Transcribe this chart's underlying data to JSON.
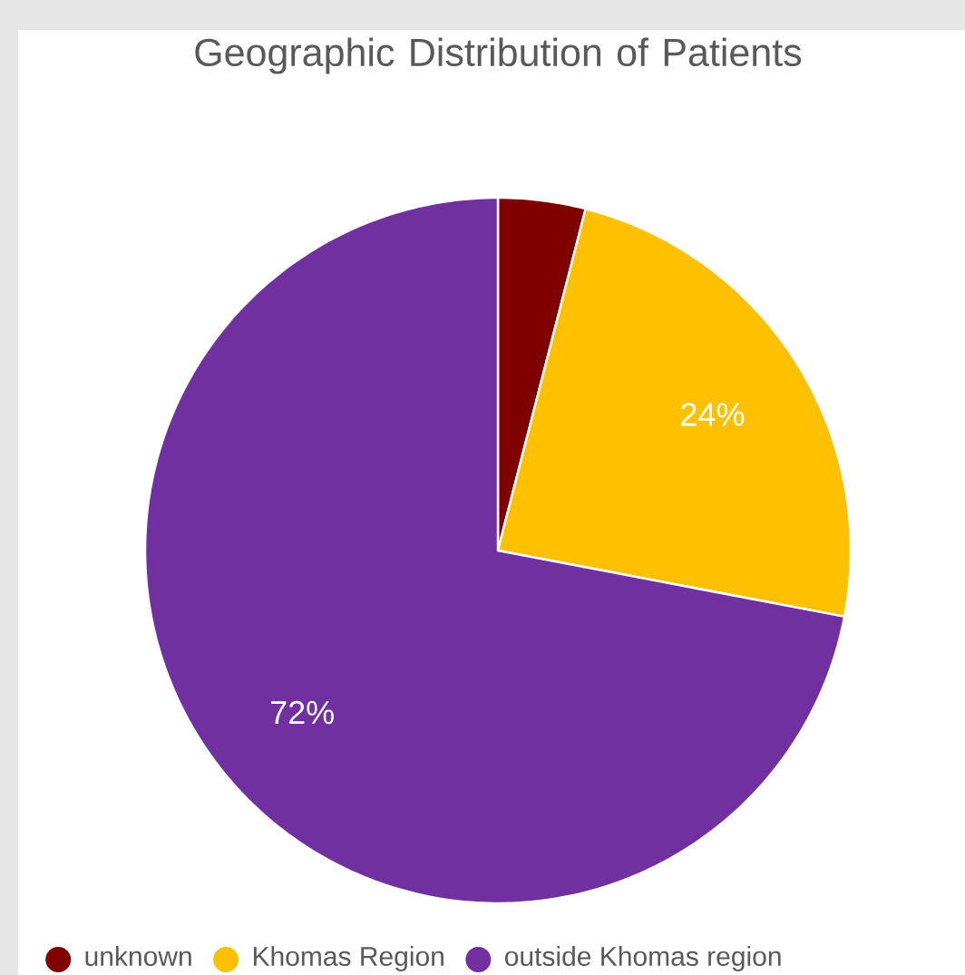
{
  "chart_data": {
    "type": "pie",
    "title": "Geographic Distribution of Patients",
    "categories": [
      "unknown",
      "Khomas Region",
      "outside Khomas region"
    ],
    "values": [
      4,
      24,
      72
    ],
    "value_labels": [
      null,
      "24%",
      "72%"
    ],
    "colors": [
      "#800000",
      "#ffc000",
      "#7030a0"
    ],
    "legend": "bottom"
  }
}
